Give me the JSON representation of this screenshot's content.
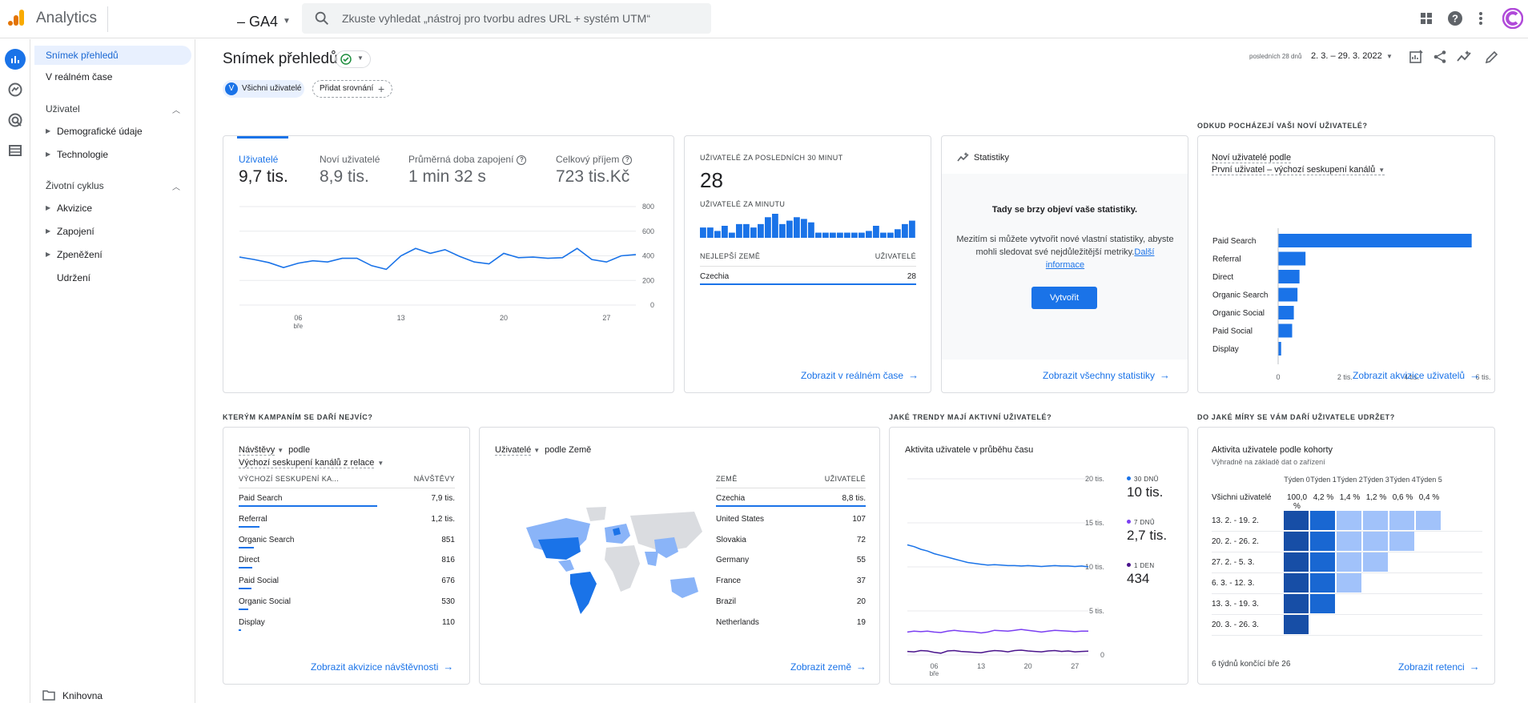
{
  "app": {
    "brand": "Analytics",
    "property": "– GA4",
    "search_placeholder": "Zkuste vyhledat „nástroj pro tvorbu adres URL + systém UTM“"
  },
  "sidebar": {
    "items": [
      {
        "label": "Snímek přehledů",
        "active": true
      },
      {
        "label": "V reálném čase"
      }
    ],
    "sections": [
      {
        "label": "Uživatel",
        "children": [
          "Demografické údaje",
          "Technologie"
        ]
      },
      {
        "label": "Životní cyklus",
        "children": [
          "Akvizice",
          "Zapojení",
          "Zpeněžení",
          "Udržení"
        ]
      }
    ],
    "library": "Knihovna"
  },
  "page": {
    "title": "Snímek přehledů",
    "segment_avatar": "V",
    "segment": "Všichni uživatelé",
    "add_comparison": "Přidat srovnání",
    "date_prefix": "posledních 28 dnů",
    "date_range": "2. 3. – 29. 3. 2022"
  },
  "overview": {
    "metrics": [
      {
        "label": "Uživatelé",
        "value": "9,7 tis.",
        "active": true
      },
      {
        "label": "Noví uživatelé",
        "value": "8,9 tis."
      },
      {
        "label": "Průměrná doba zapojení",
        "value": "1 min 32 s",
        "help": "?"
      },
      {
        "label": "Celkový příjem",
        "value": "723 tis.Kč",
        "help": "?"
      }
    ]
  },
  "chart_data": [
    {
      "type": "line",
      "x_ticks": [
        "06",
        "13",
        "20",
        "27"
      ],
      "x_sublabel": "bře",
      "y_ticks": [
        "800",
        "600",
        "400",
        "200",
        "0"
      ],
      "ylim": [
        0,
        800
      ],
      "grid": true,
      "series": [
        {
          "values": [
            390,
            370,
            345,
            305,
            340,
            360,
            350,
            380,
            380,
            320,
            290,
            400,
            460,
            420,
            450,
            395,
            350,
            335,
            420,
            385,
            390,
            380,
            385,
            460,
            370,
            350,
            400,
            410
          ]
        }
      ]
    },
    {
      "type": "bar",
      "values": [
        6,
        6,
        4,
        7,
        3,
        8,
        8,
        6,
        8,
        12,
        14,
        8,
        10,
        12,
        11,
        9,
        3,
        3,
        3,
        3,
        3,
        3,
        3,
        4,
        7,
        3,
        3,
        5,
        8,
        10
      ]
    },
    {
      "type": "bar",
      "title": "Noví uživatelé podle",
      "categories": [
        "Paid Search",
        "Referral",
        "Direct",
        "Organic Search",
        "Organic Social",
        "Paid Social",
        "Display"
      ],
      "values": [
        5800,
        820,
        640,
        580,
        470,
        420,
        90
      ],
      "x_ticks": [
        "0",
        "2 tis.",
        "4 tis.",
        "6 tis."
      ],
      "xlim": [
        0,
        6000
      ]
    },
    {
      "type": "line",
      "title": "Aktivita uživatele v průběhu času",
      "x_ticks": [
        "06",
        "13",
        "20",
        "27"
      ],
      "x_sublabel": "bře",
      "y_ticks": [
        "20 tis.",
        "15 tis.",
        "10 tis.",
        "5 tis.",
        "0"
      ],
      "ylim": [
        0,
        20000
      ],
      "series": [
        {
          "name": "30 DNŮ",
          "values": [
            12500,
            12300,
            12000,
            11800,
            11500,
            11300,
            11100,
            10900,
            10700,
            10500,
            10400,
            10300,
            10200,
            10250,
            10200,
            10150,
            10150,
            10100,
            10150,
            10100,
            10050,
            10100,
            10150,
            10100,
            10100,
            10050,
            10100,
            10000
          ]
        },
        {
          "name": "7 DNŮ",
          "values": [
            2600,
            2700,
            2650,
            2700,
            2600,
            2550,
            2700,
            2800,
            2700,
            2650,
            2600,
            2500,
            2600,
            2800,
            2750,
            2700,
            2800,
            2900,
            2800,
            2700,
            2600,
            2700,
            2800,
            2750,
            2700,
            2650,
            2700,
            2700
          ]
        },
        {
          "name": "1 DEN",
          "values": [
            400,
            350,
            500,
            450,
            300,
            200,
            450,
            500,
            400,
            350,
            300,
            250,
            400,
            500,
            450,
            350,
            500,
            550,
            450,
            400,
            350,
            450,
            500,
            400,
            450,
            350,
            400,
            430
          ]
        }
      ]
    }
  ],
  "realtime": {
    "heading": "UŽIVATELÉ ZA POSLEDNÍCH 30 MINUT",
    "value": "28",
    "per_minute": "UŽIVATELÉ ZA MINUTU",
    "col_country": "NEJLEPŠÍ ZEMĚ",
    "col_users": "UŽIVATELÉ",
    "rows": [
      {
        "country": "Czechia",
        "users": "28"
      }
    ],
    "link": "Zobrazit v reálném čase"
  },
  "insights": {
    "title": "Statistiky",
    "empty_title": "Tady se brzy objeví vaše statistiky.",
    "empty_body": "Mezitím si můžete vytvořit nové vlastní statistiky, abyste mohli sledovat své nejdůležitější metriky.",
    "empty_link": "Další informace",
    "button": "Vytvořit",
    "link": "Zobrazit všechny statistiky"
  },
  "new_users": {
    "section": "ODKUD POCHÁZEJÍ VAŠI NOVÍ UŽIVATELÉ?",
    "title": "Noví uživatelé podle",
    "dimension": "První uživatel – výchozí seskupení kanálů",
    "link": "Zobrazit akvizice uživatelů"
  },
  "campaigns": {
    "section": "KTERÝM KAMPANÍM SE DAŘÍ NEJVÍC?",
    "metric": "Návštěvy",
    "by": "podle",
    "dimension": "Výchozí seskupení kanálů z relace",
    "col1": "VÝCHOZÍ SESKUPENÍ KA...",
    "col2": "NÁVŠTĚVY",
    "rows": [
      {
        "label": "Paid Search",
        "value": "7,9 tis.",
        "share": 1.0
      },
      {
        "label": "Referral",
        "value": "1,2 tis.",
        "share": 0.15
      },
      {
        "label": "Organic Search",
        "value": "851",
        "share": 0.11
      },
      {
        "label": "Direct",
        "value": "816",
        "share": 0.1
      },
      {
        "label": "Paid Social",
        "value": "676",
        "share": 0.09
      },
      {
        "label": "Organic Social",
        "value": "530",
        "share": 0.07
      },
      {
        "label": "Display",
        "value": "110",
        "share": 0.015
      }
    ],
    "link": "Zobrazit akvizice návštěvnosti"
  },
  "countries": {
    "metric": "Uživatelé",
    "by": "podle Země",
    "col1": "ZEMĚ",
    "col2": "UŽIVATELÉ",
    "rows": [
      {
        "label": "Czechia",
        "value": "8,8 tis."
      },
      {
        "label": "United States",
        "value": "107"
      },
      {
        "label": "Slovakia",
        "value": "72"
      },
      {
        "label": "Germany",
        "value": "55"
      },
      {
        "label": "France",
        "value": "37"
      },
      {
        "label": "Brazil",
        "value": "20"
      },
      {
        "label": "Netherlands",
        "value": "19"
      }
    ],
    "link": "Zobrazit země"
  },
  "activity": {
    "section": "JAKÉ TRENDY MAJÍ AKTIVNÍ UŽIVATELÉ?",
    "title": "Aktivita uživatele v průběhu času",
    "legend": [
      {
        "label": "30 DNŮ",
        "value": "10 tis.",
        "color": "#1a73e8"
      },
      {
        "label": "7 DNŮ",
        "value": "2,7 tis.",
        "color": "#7b3ff2"
      },
      {
        "label": "1 DEN",
        "value": "434",
        "color": "#4a148c"
      }
    ]
  },
  "retention": {
    "section": "DO JAKÉ MÍRY SE VÁM DAŘÍ UŽIVATELE UDRŽET?",
    "title": "Aktivita uživatele podle kohorty",
    "subtitle": "Výhradně na základě dat o zařízení",
    "weeks": [
      "Týden 0",
      "Týden 1",
      "Týden 2",
      "Týden 3",
      "Týden 4",
      "Týden 5"
    ],
    "all_label": "Všichni uživatelé",
    "all_values": [
      "100,0 %",
      "4,2 %",
      "1,4 %",
      "1,2 %",
      "0,6 %",
      "0,4 %"
    ],
    "cohorts": [
      {
        "label": "13. 2. - 19. 2.",
        "cells": 6
      },
      {
        "label": "20. 2. - 26. 2.",
        "cells": 5
      },
      {
        "label": "27. 2. - 5. 3.",
        "cells": 4
      },
      {
        "label": "6. 3. - 12. 3.",
        "cells": 3
      },
      {
        "label": "13. 3. - 19. 3.",
        "cells": 2
      },
      {
        "label": "20. 3. - 26. 3.",
        "cells": 1
      }
    ],
    "footer": "6 týdnů končící bře 26",
    "link": "Zobrazit retenci"
  }
}
